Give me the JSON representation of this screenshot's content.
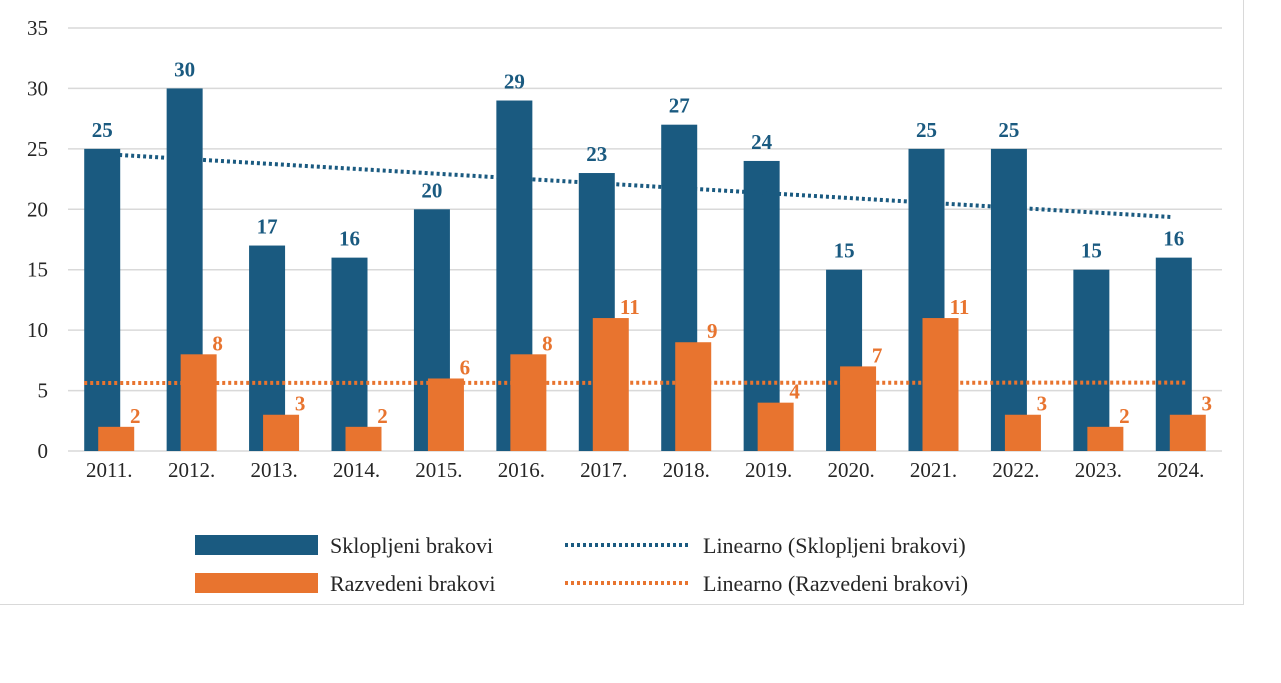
{
  "chart_data": {
    "type": "bar",
    "categories": [
      "2011.",
      "2012.",
      "2013.",
      "2014.",
      "2015.",
      "2016.",
      "2017.",
      "2018.",
      "2019.",
      "2020.",
      "2021.",
      "2022.",
      "2023.",
      "2024."
    ],
    "series": [
      {
        "name": "Sklopljeni brakovi",
        "color": "#1a5a80",
        "values": [
          25,
          30,
          17,
          16,
          20,
          29,
          23,
          27,
          24,
          15,
          25,
          25,
          15,
          16
        ]
      },
      {
        "name": "Razvedeni brakovi",
        "color": "#e8742f",
        "values": [
          2,
          8,
          3,
          2,
          6,
          8,
          11,
          9,
          4,
          7,
          11,
          3,
          2,
          3
        ]
      }
    ],
    "trendlines": [
      {
        "name": "Linearno (Sklopljeni brakovi)",
        "of": 0,
        "type": "linear",
        "style": "dotted",
        "color": "#1a5a80"
      },
      {
        "name": "Linearno (Razvedeni brakovi)",
        "of": 1,
        "type": "linear",
        "style": "dotted",
        "color": "#e8742f"
      }
    ],
    "yticks": [
      0,
      5,
      10,
      15,
      20,
      25,
      30,
      35
    ],
    "ylim": [
      0,
      35
    ],
    "grid": true,
    "data_labels": true,
    "legend_position": "bottom"
  }
}
